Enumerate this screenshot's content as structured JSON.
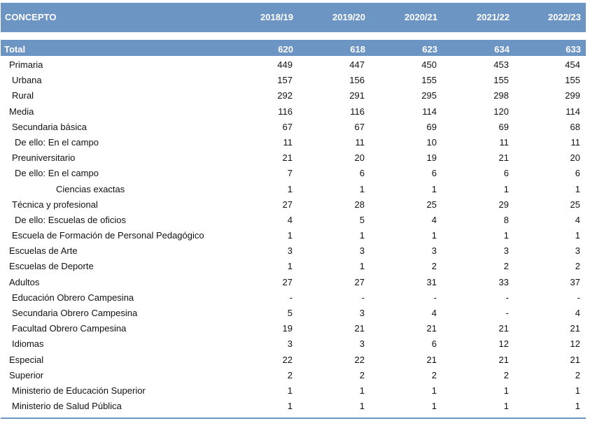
{
  "header": {
    "concept": "CONCEPTO",
    "years": [
      "2018/19",
      "2019/20",
      "2020/21",
      "2021/22",
      "2022/23"
    ]
  },
  "total": {
    "label": "Total",
    "values": [
      "620",
      "618",
      "623",
      "634",
      "633"
    ]
  },
  "rows": [
    {
      "label": "Primaria",
      "indent": 0,
      "values": [
        "449",
        "447",
        "450",
        "453",
        "454"
      ]
    },
    {
      "label": "Urbana",
      "indent": 1,
      "values": [
        "157",
        "156",
        "155",
        "155",
        "155"
      ]
    },
    {
      "label": "Rural",
      "indent": 1,
      "values": [
        "292",
        "291",
        "295",
        "298",
        "299"
      ]
    },
    {
      "label": "Media",
      "indent": 0,
      "values": [
        "116",
        "116",
        "114",
        "120",
        "114"
      ]
    },
    {
      "label": "Secundaria básica",
      "indent": 1,
      "values": [
        "67",
        "67",
        "69",
        "69",
        "68"
      ]
    },
    {
      "label": "De ello: En el campo",
      "indent": 2,
      "values": [
        "11",
        "11",
        "10",
        "11",
        "11"
      ]
    },
    {
      "label": "Preuniversitario",
      "indent": 1,
      "values": [
        "21",
        "20",
        "19",
        "21",
        "20"
      ]
    },
    {
      "label": "De ello: En el campo",
      "indent": 2,
      "values": [
        "7",
        "6",
        "6",
        "6",
        "6"
      ]
    },
    {
      "label": "Ciencias exactas",
      "indent": 3,
      "values": [
        "1",
        "1",
        "1",
        "1",
        "1"
      ]
    },
    {
      "label": "Técnica y profesional",
      "indent": 1,
      "values": [
        "27",
        "28",
        "25",
        "29",
        "25"
      ]
    },
    {
      "label": "De ello: Escuelas de oficios",
      "indent": 2,
      "values": [
        "4",
        "5",
        "4",
        "8",
        "4"
      ]
    },
    {
      "label": "Escuela de Formación de Personal Pedagógico",
      "indent": 1,
      "values": [
        "1",
        "1",
        "1",
        "1",
        "1"
      ]
    },
    {
      "label": "Escuelas de Arte",
      "indent": 0,
      "values": [
        "3",
        "3",
        "3",
        "3",
        "3"
      ]
    },
    {
      "label": "Escuelas de Deporte",
      "indent": 0,
      "values": [
        "1",
        "1",
        "2",
        "2",
        "2"
      ]
    },
    {
      "label": "Adultos",
      "indent": 0,
      "values": [
        "27",
        "27",
        "31",
        "33",
        "37"
      ]
    },
    {
      "label": "Educación Obrero Campesina",
      "indent": 1,
      "values": [
        "-",
        "-",
        "-",
        "-",
        "-"
      ]
    },
    {
      "label": "Secundaria Obrero Campesina",
      "indent": 1,
      "values": [
        "5",
        "3",
        "4",
        "-",
        "4"
      ]
    },
    {
      "label": "Facultad Obrero Campesina",
      "indent": 1,
      "values": [
        "19",
        "21",
        "21",
        "21",
        "21"
      ]
    },
    {
      "label": "Idiomas",
      "indent": 1,
      "values": [
        "3",
        "3",
        "6",
        "12",
        "12"
      ]
    },
    {
      "label": "Especial",
      "indent": 0,
      "values": [
        "22",
        "22",
        "21",
        "21",
        "21"
      ]
    },
    {
      "label": "Superior",
      "indent": 0,
      "values": [
        "2",
        "2",
        "2",
        "2",
        "2"
      ]
    },
    {
      "label": "Ministerio de Educación Superior",
      "indent": 1,
      "values": [
        "1",
        "1",
        "1",
        "1",
        "1"
      ]
    },
    {
      "label": "Ministerio de Salud Pública",
      "indent": 1,
      "values": [
        "1",
        "1",
        "1",
        "1",
        "1"
      ]
    }
  ]
}
